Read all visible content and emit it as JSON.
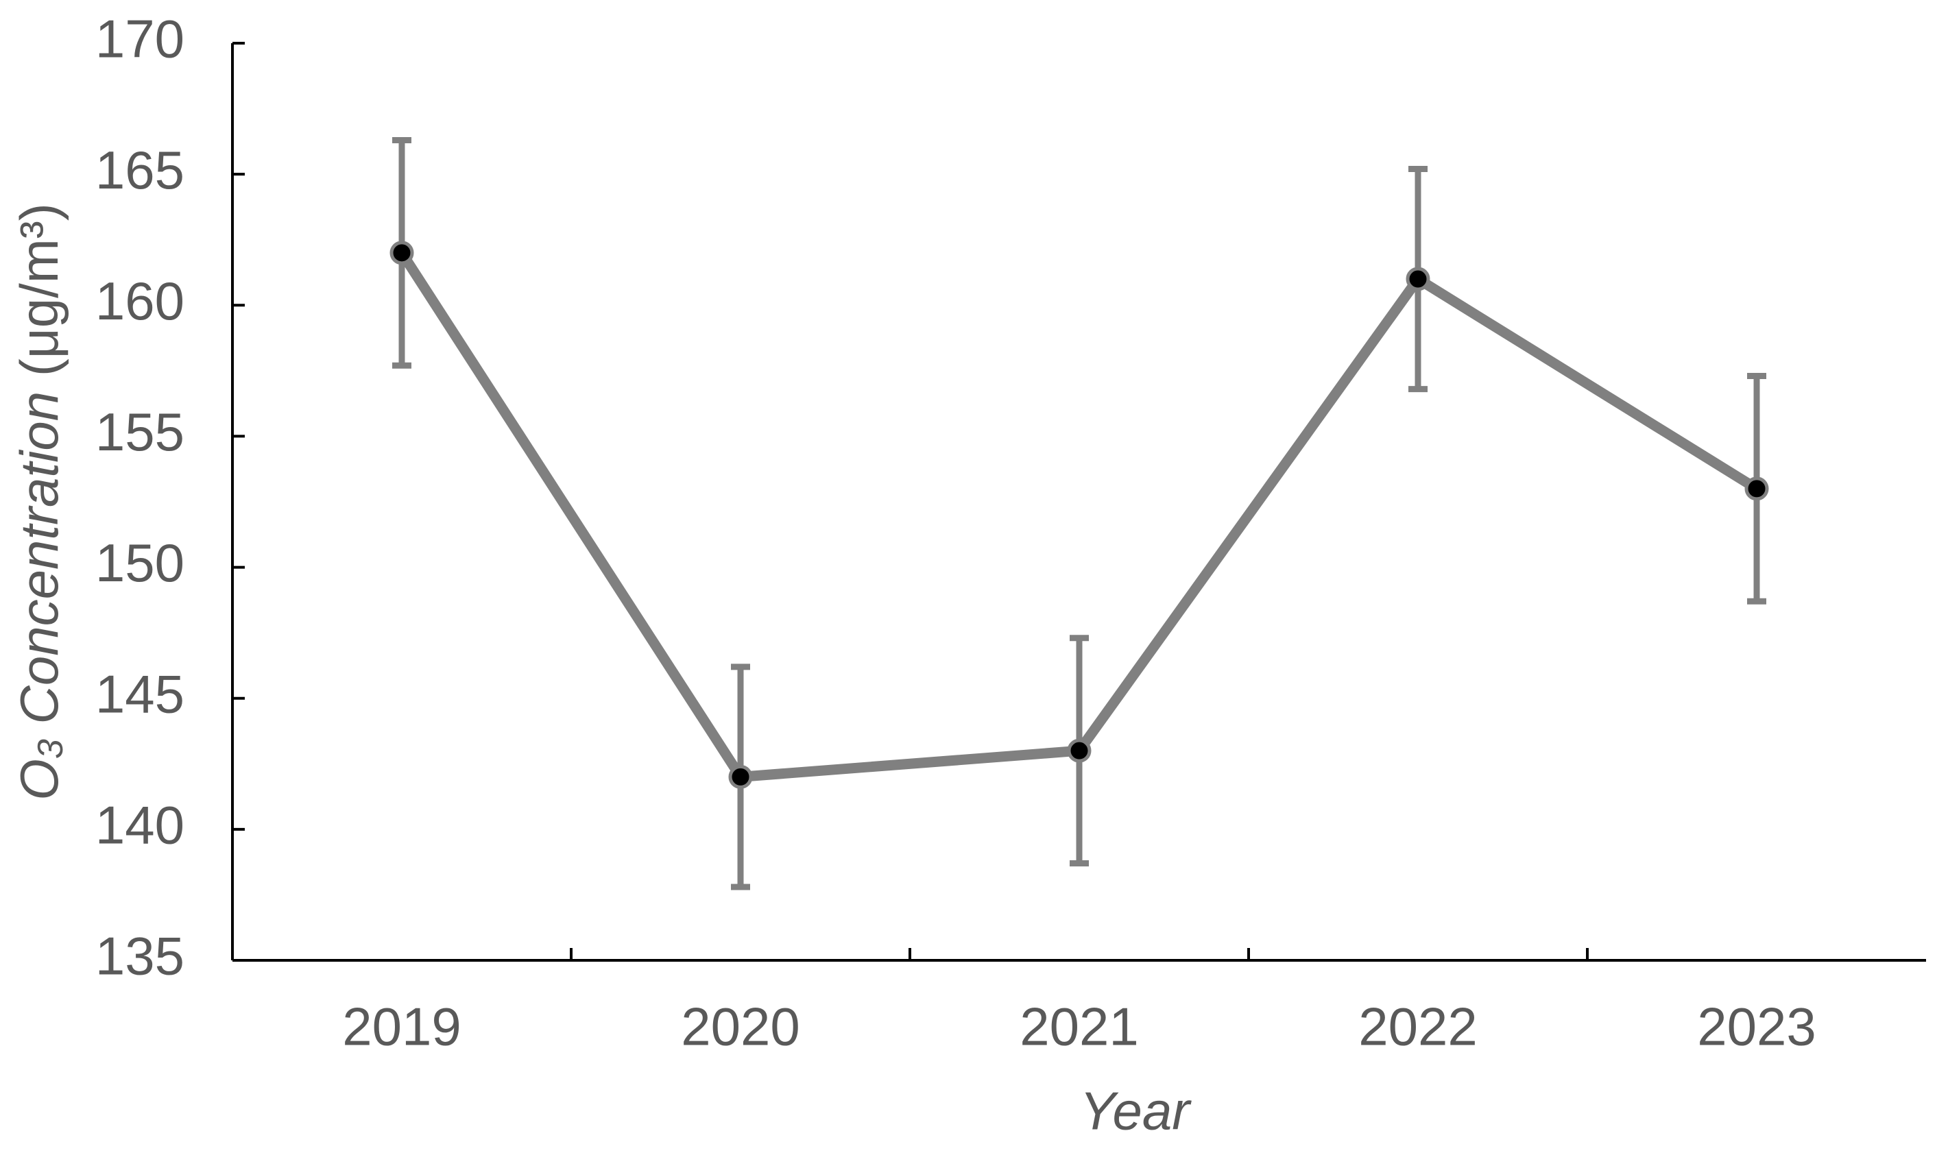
{
  "chart_data": {
    "type": "line",
    "categories": [
      "2019",
      "2020",
      "2021",
      "2022",
      "2023"
    ],
    "series": [
      {
        "color": "#808080",
        "values": [
          162,
          142,
          143,
          161,
          153
        ],
        "errors": [
          4.3,
          4.2,
          4.3,
          4.2,
          4.3
        ]
      }
    ],
    "ylim": [
      135,
      170
    ],
    "yticks": [
      135,
      140,
      145,
      150,
      155,
      160,
      165,
      170
    ],
    "xlabel": "Year",
    "ylabel": {
      "symbol": "O",
      "subscript": "3",
      "name": "Concentration",
      "unit": "(μg/m³)"
    },
    "grid": false
  }
}
